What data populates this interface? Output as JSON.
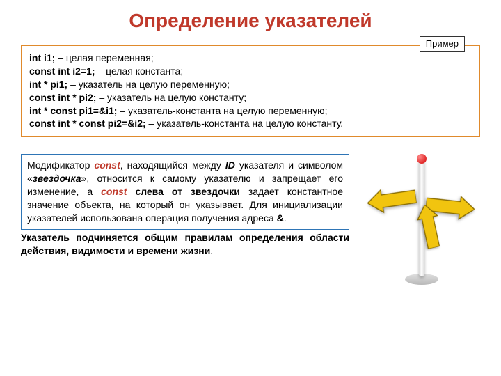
{
  "colors": {
    "title": "#c0392b",
    "example_border": "#e08a2c",
    "const": "#c0392b",
    "highlight_border": "#2e75b6",
    "arrow_fill": "#f1c40f",
    "arrow_stroke": "#8a6d00"
  },
  "title": "Определение указателей",
  "example_label": "Пример",
  "example_lines": [
    {
      "code": "int i1;",
      "desc": "– целая переменная;"
    },
    {
      "code": "const int i2=1;",
      "desc": "– целая константа;"
    },
    {
      "code": "int * pi1;",
      "desc": "– указатель на целую переменную;"
    },
    {
      "code": "const int * pi2;",
      "desc": "– указатель на целую константу;"
    },
    {
      "code": "int * const pi1=&i1;",
      "desc": "– указатель-константа на целую переменную;"
    },
    {
      "code": "const int * const pi2=&i2;",
      "desc": "– указатель-константа на целую константу."
    }
  ],
  "paragraph": {
    "p1_pre": "Модификатор ",
    "p1_const": "const",
    "p1_mid1": ", находящийся между ",
    "p1_id": "ID",
    "p1_mid2": " указателя и символом «",
    "p1_star": "звездочка",
    "p1_mid3": "», относится к самому указателю и запрещает его изменение, а ",
    "p1_const2": "const",
    "p1_mid4": " ",
    "p1_strong1": "слева от звездочки",
    "p1_mid5": " задает константное значение объекта, на который он указывает. Для инициализации указателей использована операция получения адреса ",
    "p1_amp": "&",
    "p1_end": ".",
    "p2_strong": "Указатель подчиняется общим правилам определения области действия, видимости и времени жизни",
    "p2_end": "."
  }
}
